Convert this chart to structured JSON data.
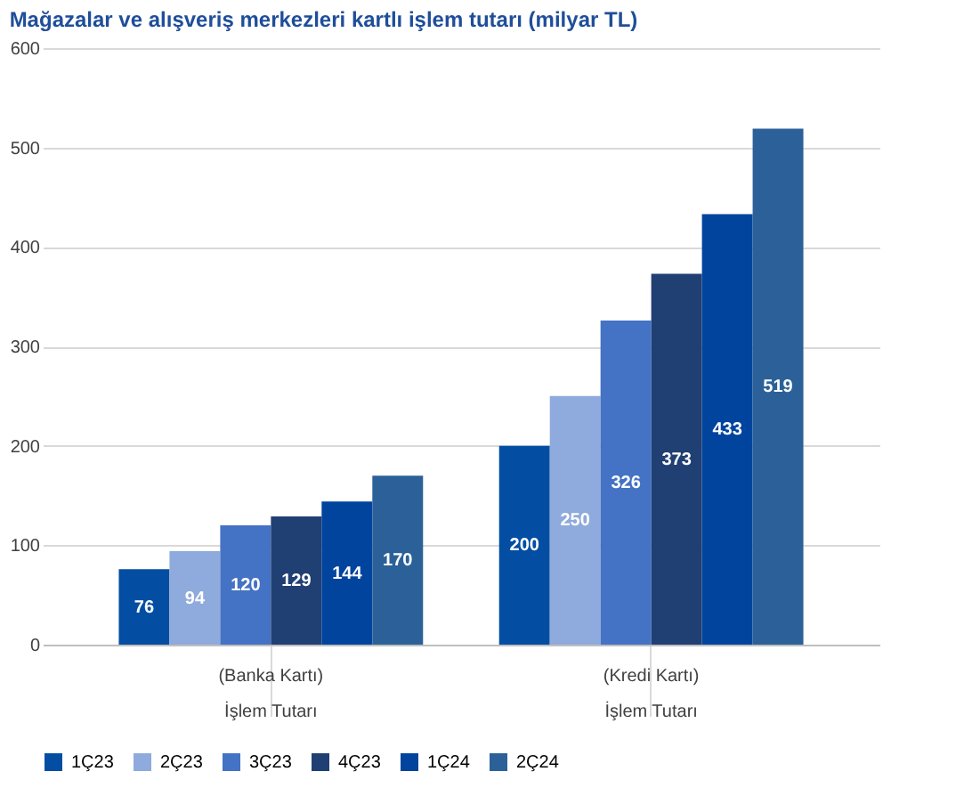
{
  "chart_data": {
    "type": "bar",
    "title": "Mağazalar ve alışveriş merkezleri kartlı işlem tutarı (milyar TL)",
    "categories": [
      "(Banka Kartı)\nİşlem Tutarı",
      "(Kredi Kartı)\nİşlem Tutarı"
    ],
    "series": [
      {
        "name": "1Ç23",
        "color": "#034ea2",
        "values": [
          76,
          200
        ]
      },
      {
        "name": "2Ç23",
        "color": "#8faadc",
        "values": [
          94,
          250
        ]
      },
      {
        "name": "3Ç23",
        "color": "#4472c4",
        "values": [
          120,
          326
        ]
      },
      {
        "name": "4Ç23",
        "color": "#203f73",
        "values": [
          129,
          373
        ]
      },
      {
        "name": "1Ç24",
        "color": "#00449e",
        "values": [
          144,
          433
        ]
      },
      {
        "name": "2Ç24",
        "color": "#2b6198",
        "values": [
          170,
          519
        ]
      }
    ],
    "ylim": [
      0,
      600
    ],
    "yticks": [
      0,
      100,
      200,
      300,
      400,
      500,
      600
    ],
    "grid": "y",
    "legend": "bottom",
    "data_labels": true
  }
}
